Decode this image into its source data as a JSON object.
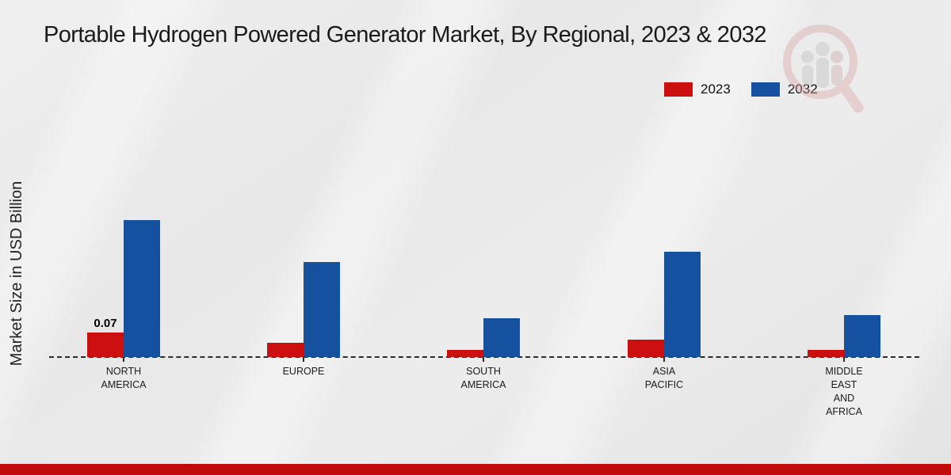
{
  "page": {
    "title": "Portable Hydrogen Powered Generator Market, By Regional, 2023 & 2032"
  },
  "colors": {
    "series_2023": "#cc1010",
    "series_2032": "#15519e",
    "footer_band": "#c20c0c",
    "baseline": "#2b2b2b",
    "background": "#e9e9e9",
    "watermark_ring": "#d9a4a4",
    "watermark_figures": "#bfbfbf"
  },
  "chart_data": {
    "type": "bar",
    "title": "Portable Hydrogen Powered Generator Market, By Regional, 2023 & 2032",
    "xlabel": "",
    "ylabel": "Market Size in USD Billion",
    "categories": [
      "NORTH AMERICA",
      "EUROPE",
      "SOUTH AMERICA",
      "ASIA PACIFIC",
      "MIDDLE EAST AND AFRICA"
    ],
    "category_label_lines": [
      "NORTH\nAMERICA",
      "EUROPE",
      "SOUTH\nAMERICA",
      "ASIA\nPACIFIC",
      "MIDDLE\nEAST\nAND\nAFRICA"
    ],
    "series": [
      {
        "name": "2023",
        "color": "#cc1010",
        "values": [
          0.07,
          0.04,
          0.02,
          0.05,
          0.02
        ]
      },
      {
        "name": "2032",
        "color": "#15519e",
        "values": [
          0.39,
          0.27,
          0.11,
          0.3,
          0.12
        ]
      }
    ],
    "data_labels_series_2023": [
      "0.07",
      "",
      "",
      "",
      ""
    ],
    "ylim": [
      0,
      0.45
    ],
    "grid": false,
    "baseline_style": "dashed",
    "legend_position": "top-right",
    "y_axis_ticks_visible": false
  }
}
